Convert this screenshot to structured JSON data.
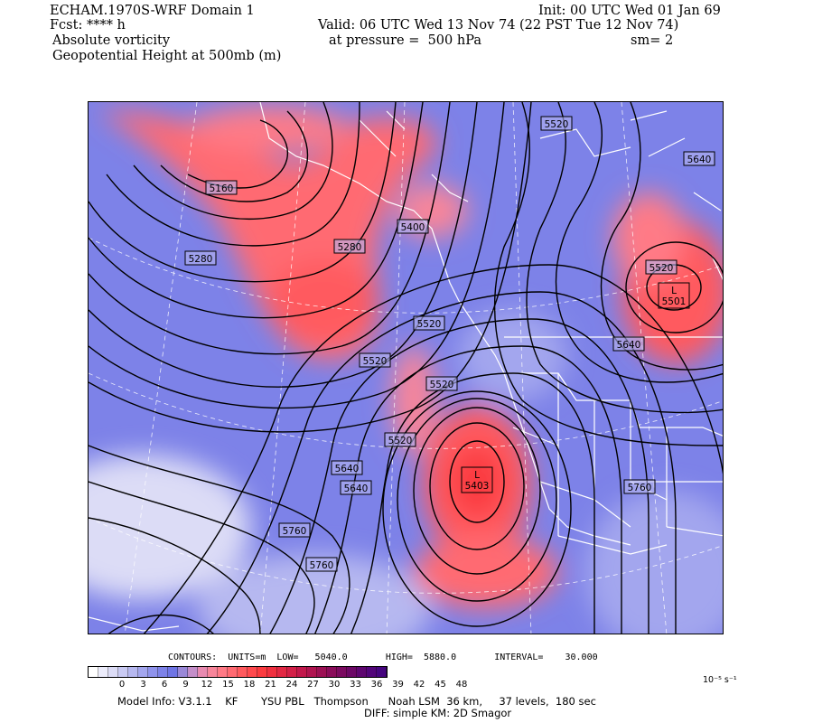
{
  "header": {
    "left_line1": "ECHAM.1970S-WRF Domain 1",
    "left_line2": "Fcst: **** h",
    "left_line3": "Absolute vorticity",
    "left_line4": "Geopotential Height at 500mb (m)",
    "init": "Init: 00 UTC Wed 01 Jan 69",
    "valid": "Valid: 06 UTC Wed 13 Nov 74 (22 PST Tue 12 Nov 74)",
    "pressure": "at pressure =  500 hPa",
    "smoothing": "sm= 2"
  },
  "map": {
    "contour_labels": [
      {
        "text": "5520",
        "id": "c1"
      },
      {
        "text": "5640",
        "id": "c2"
      },
      {
        "text": "5160",
        "id": "c3"
      },
      {
        "text": "5400",
        "id": "c4"
      },
      {
        "text": "5280",
        "id": "c5"
      },
      {
        "text": "5280",
        "id": "c6"
      },
      {
        "text": "5520",
        "id": "c7"
      },
      {
        "text": "5520",
        "id": "c8"
      },
      {
        "text": "5520",
        "id": "c9"
      },
      {
        "text": "5640",
        "id": "c10"
      },
      {
        "text": "5520",
        "id": "c11"
      },
      {
        "text": "5520",
        "id": "c12"
      },
      {
        "text": "5640",
        "id": "c13"
      },
      {
        "text": "5640",
        "id": "c14"
      },
      {
        "text": "5760",
        "id": "c15"
      },
      {
        "text": "5760",
        "id": "c16"
      },
      {
        "text": "5760",
        "id": "c17"
      }
    ],
    "lows": [
      {
        "symbol": "L",
        "value": "5501"
      },
      {
        "symbol": "L",
        "value": "5403"
      }
    ],
    "colors": {
      "high_vorticity": "#ff5a5a",
      "low_vorticity": "#7d82e8",
      "contour": "#000000",
      "borders": "#ffffff"
    }
  },
  "contours_info": "CONTOURS:  UNITS=m  LOW=   5040.0       HIGH=  5880.0       INTERVAL=    30.000",
  "colorbar": {
    "ticks": [
      "0",
      "3",
      "6",
      "9",
      "12",
      "15",
      "18",
      "21",
      "24",
      "27",
      "30",
      "33",
      "36",
      "39",
      "42",
      "45",
      "48"
    ],
    "units": "10⁻⁵ s⁻¹",
    "colors": [
      "#ffffff",
      "#ececfb",
      "#dcdcf6",
      "#c9caf3",
      "#b6b8f0",
      "#a3a6ee",
      "#8f93ec",
      "#7d82e8",
      "#6f75e5",
      "#9a88d8",
      "#c48ec9",
      "#e88ab0",
      "#f7859a",
      "#ff7a86",
      "#ff6a72",
      "#ff5a5e",
      "#ff4a4e",
      "#fb3b40",
      "#f03040",
      "#e22844",
      "#d32048",
      "#c2184c",
      "#b01450",
      "#9c1054",
      "#8a0c5a",
      "#7b0a60",
      "#6c0866",
      "#5e0670",
      "#52057a",
      "#46057f"
    ]
  },
  "footer": {
    "line1": "Model Info: V3.1.1    KF       YSU PBL   Thompson      Noah LSM  36 km,     37 levels,  180 sec",
    "line2": "DIFF: simple KM: 2D Smagor"
  }
}
